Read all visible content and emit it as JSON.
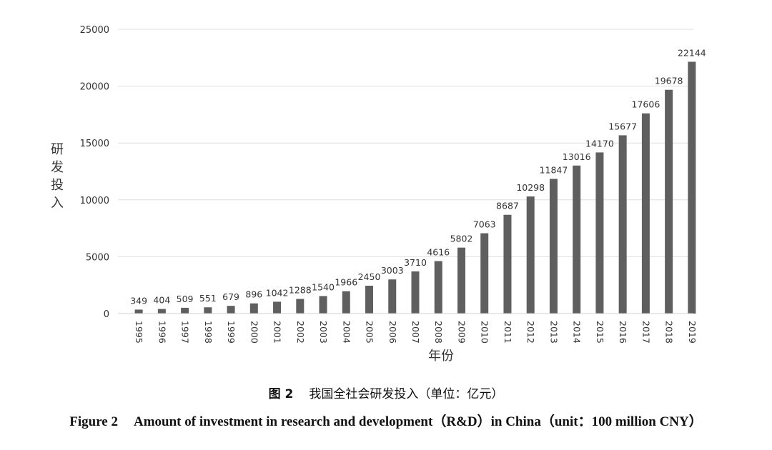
{
  "chart_data": {
    "type": "bar",
    "ylabel": "研发投入",
    "xlabel": "年份",
    "ylim": [
      0,
      25000
    ],
    "yticks": [
      "0",
      "5000",
      "10000",
      "15000",
      "20000",
      "25000"
    ],
    "grid": true,
    "bar_color": "#5f5f5f",
    "categories": [
      "1995",
      "1996",
      "1997",
      "1998",
      "1999",
      "2000",
      "2001",
      "2002",
      "2003",
      "2004",
      "2005",
      "2006",
      "2007",
      "2008",
      "2009",
      "2010",
      "2011",
      "2012",
      "2013",
      "2014",
      "2015",
      "2016",
      "2017",
      "2018",
      "2019"
    ],
    "values": [
      349,
      404,
      509,
      551,
      679,
      896,
      1042,
      1288,
      1540,
      1966,
      2450,
      3003,
      3710,
      4616,
      5802,
      7063,
      8687,
      10298,
      11847,
      13016,
      14170,
      15677,
      17606,
      19678,
      22144
    ]
  },
  "caption": {
    "zh_fig": "图 2",
    "zh_text": "我国全社会研发投入（单位：亿元）",
    "en_fig": "Figure 2",
    "en_text": "Amount of investment in research and development（R&D）in China（unit：100 million CNY）"
  }
}
